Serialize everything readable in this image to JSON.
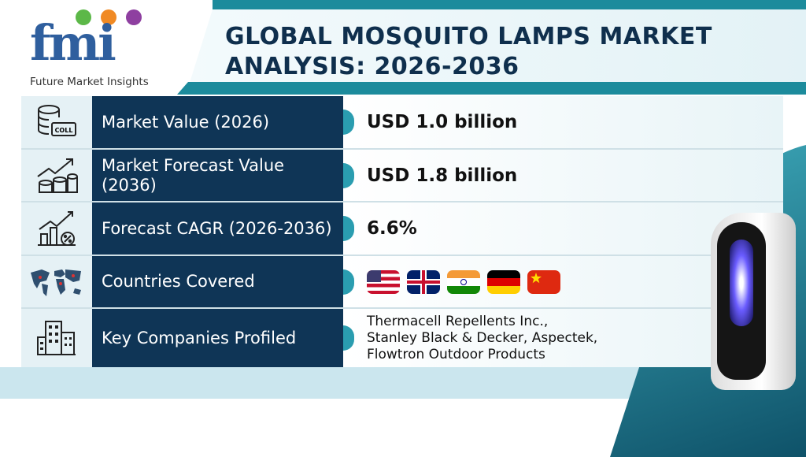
{
  "logo": {
    "letters": "fmi",
    "name": "Future Market Insights",
    "dot_colors": [
      "#5cb848",
      "#f08a24",
      "#8e3fa0"
    ]
  },
  "title": {
    "line1": "GLOBAL MOSQUITO LAMPS MARKET",
    "line2": "ANALYSIS: 2026-2036"
  },
  "rows": [
    {
      "icon": "coin-database-icon",
      "icon_text": "COLL",
      "label": "Market Value (2026)",
      "value": "USD 1.0 billion"
    },
    {
      "icon": "growth-coins-icon",
      "label": "Market Forecast Value (2036)",
      "value": "USD 1.8 billion"
    },
    {
      "icon": "cagr-chart-icon",
      "label": "Forecast CAGR (2026-2036)",
      "value": "6.6%"
    },
    {
      "icon": "world-map-icon",
      "label": "Countries Covered",
      "flags": [
        "us-flag",
        "uk-flag",
        "india-flag",
        "germany-flag",
        "china-flag"
      ]
    },
    {
      "icon": "office-building-icon",
      "label": "Key Companies Profiled",
      "companies": [
        "Thermacell Repellents Inc.,",
        "Stanley Black & Decker, Aspectek,",
        "Flowtron Outdoor Products"
      ]
    }
  ],
  "colors": {
    "navy": "#0f3556",
    "teal": "#1c8b9c",
    "logo_blue": "#2f5f9e"
  }
}
